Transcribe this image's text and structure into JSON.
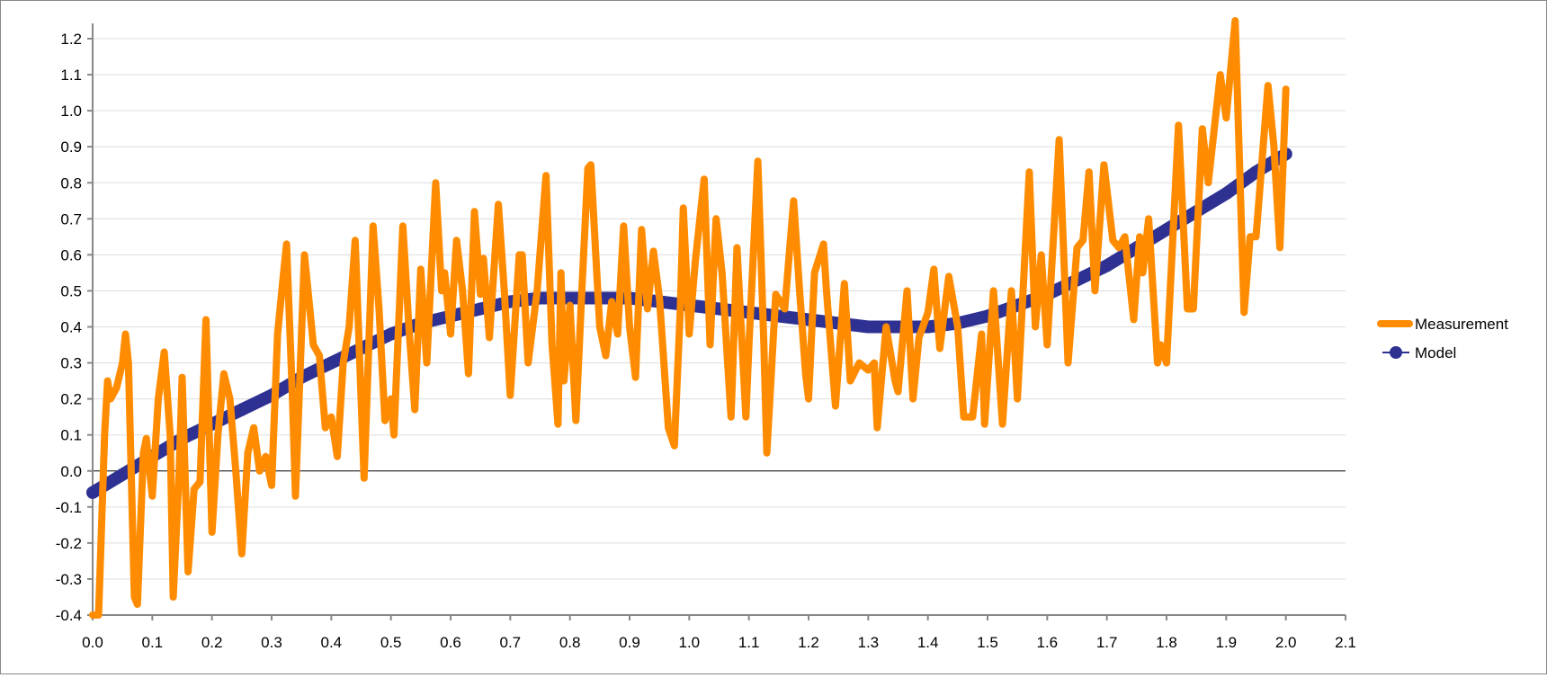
{
  "chart_data": {
    "type": "line",
    "title": "",
    "xlabel": "",
    "ylabel": "",
    "xlim": [
      0,
      2.1
    ],
    "ylim": [
      -0.4,
      1.2
    ],
    "xticks": [
      "0.0",
      "0.1",
      "0.2",
      "0.3",
      "0.4",
      "0.5",
      "0.6",
      "0.7",
      "0.8",
      "0.9",
      "1.0",
      "1.1",
      "1.2",
      "1.3",
      "1.4",
      "1.5",
      "1.6",
      "1.7",
      "1.8",
      "1.9",
      "2.0",
      "2.1"
    ],
    "yticks": [
      "1.2",
      "1.1",
      "1.0",
      "0.9",
      "0.8",
      "0.7",
      "0.6",
      "0.5",
      "0.4",
      "0.3",
      "0.2",
      "0.1",
      "0.0",
      "-0.1",
      "-0.2",
      "-0.3",
      "-0.4"
    ],
    "grid": true,
    "legend_position": "right",
    "colors": {
      "measurement": "#FF8C00",
      "model": "#2E3192"
    },
    "series": [
      {
        "name": "Measurement",
        "x": [
          0,
          0.01,
          0.02,
          0.025,
          0.03,
          0.04,
          0.05,
          0.055,
          0.06,
          0.07,
          0.075,
          0.085,
          0.09,
          0.1,
          0.11,
          0.12,
          0.13,
          0.135,
          0.145,
          0.15,
          0.16,
          0.17,
          0.18,
          0.19,
          0.2,
          0.21,
          0.22,
          0.23,
          0.24,
          0.25,
          0.26,
          0.27,
          0.28,
          0.29,
          0.3,
          0.31,
          0.32,
          0.325,
          0.335,
          0.34,
          0.355,
          0.37,
          0.38,
          0.39,
          0.4,
          0.41,
          0.42,
          0.43,
          0.44,
          0.455,
          0.47,
          0.48,
          0.49,
          0.5,
          0.505,
          0.52,
          0.53,
          0.54,
          0.55,
          0.56,
          0.575,
          0.585,
          0.59,
          0.6,
          0.61,
          0.62,
          0.63,
          0.64,
          0.65,
          0.655,
          0.665,
          0.68,
          0.69,
          0.7,
          0.715,
          0.72,
          0.73,
          0.745,
          0.76,
          0.77,
          0.78,
          0.785,
          0.79,
          0.8,
          0.81,
          0.82,
          0.83,
          0.835,
          0.85,
          0.86,
          0.87,
          0.88,
          0.89,
          0.9,
          0.91,
          0.92,
          0.93,
          0.94,
          0.95,
          0.965,
          0.975,
          0.985,
          0.99,
          1.0,
          1.01,
          1.025,
          1.035,
          1.045,
          1.055,
          1.07,
          1.08,
          1.095,
          1.1,
          1.115,
          1.125,
          1.13,
          1.145,
          1.16,
          1.175,
          1.185,
          1.195,
          1.2,
          1.21,
          1.225,
          1.23,
          1.245,
          1.26,
          1.27,
          1.285,
          1.3,
          1.31,
          1.315,
          1.33,
          1.345,
          1.35,
          1.365,
          1.375,
          1.385,
          1.4,
          1.41,
          1.42,
          1.435,
          1.45,
          1.46,
          1.475,
          1.49,
          1.495,
          1.51,
          1.525,
          1.54,
          1.55,
          1.57,
          1.58,
          1.59,
          1.6,
          1.62,
          1.635,
          1.65,
          1.66,
          1.67,
          1.68,
          1.695,
          1.71,
          1.72,
          1.73,
          1.745,
          1.755,
          1.76,
          1.77,
          1.785,
          1.79,
          1.8,
          1.82,
          1.835,
          1.845,
          1.86,
          1.87,
          1.89,
          1.9,
          1.915,
          1.93,
          1.94,
          1.95,
          1.97,
          1.98,
          1.99,
          2.0
        ],
        "y": [
          -0.4,
          -0.4,
          0.1,
          0.25,
          0.2,
          0.23,
          0.3,
          0.38,
          0.3,
          -0.35,
          -0.37,
          0.05,
          0.09,
          -0.07,
          0.2,
          0.33,
          0.1,
          -0.35,
          0.0,
          0.26,
          -0.28,
          -0.05,
          -0.03,
          0.42,
          -0.17,
          0.1,
          0.27,
          0.2,
          0.0,
          -0.23,
          0.05,
          0.12,
          0.0,
          0.04,
          -0.04,
          0.38,
          0.55,
          0.63,
          0.2,
          -0.07,
          0.6,
          0.35,
          0.32,
          0.12,
          0.15,
          0.04,
          0.3,
          0.4,
          0.64,
          -0.02,
          0.68,
          0.45,
          0.14,
          0.2,
          0.1,
          0.68,
          0.4,
          0.17,
          0.56,
          0.3,
          0.8,
          0.5,
          0.55,
          0.38,
          0.64,
          0.5,
          0.27,
          0.72,
          0.49,
          0.59,
          0.37,
          0.74,
          0.5,
          0.21,
          0.6,
          0.6,
          0.3,
          0.5,
          0.82,
          0.35,
          0.13,
          0.55,
          0.25,
          0.46,
          0.14,
          0.5,
          0.84,
          0.85,
          0.4,
          0.32,
          0.47,
          0.38,
          0.68,
          0.4,
          0.26,
          0.67,
          0.45,
          0.61,
          0.48,
          0.12,
          0.07,
          0.45,
          0.73,
          0.38,
          0.58,
          0.81,
          0.35,
          0.7,
          0.55,
          0.15,
          0.62,
          0.15,
          0.35,
          0.86,
          0.35,
          0.05,
          0.49,
          0.45,
          0.75,
          0.5,
          0.27,
          0.2,
          0.55,
          0.63,
          0.5,
          0.18,
          0.52,
          0.25,
          0.3,
          0.28,
          0.3,
          0.12,
          0.4,
          0.25,
          0.22,
          0.5,
          0.2,
          0.37,
          0.44,
          0.56,
          0.34,
          0.54,
          0.4,
          0.15,
          0.15,
          0.38,
          0.13,
          0.5,
          0.13,
          0.5,
          0.2,
          0.83,
          0.4,
          0.6,
          0.35,
          0.92,
          0.3,
          0.62,
          0.64,
          0.83,
          0.5,
          0.85,
          0.64,
          0.62,
          0.65,
          0.42,
          0.65,
          0.55,
          0.7,
          0.3,
          0.35,
          0.3,
          0.96,
          0.45,
          0.45,
          0.95,
          0.8,
          1.1,
          0.98,
          1.25,
          0.44,
          0.65,
          0.65,
          1.07,
          0.9,
          0.62,
          1.06
        ]
      },
      {
        "name": "Model",
        "x": [
          0,
          0.05,
          0.1,
          0.15,
          0.2,
          0.25,
          0.3,
          0.35,
          0.4,
          0.45,
          0.5,
          0.55,
          0.6,
          0.65,
          0.7,
          0.75,
          0.8,
          0.85,
          0.9,
          0.95,
          1.0,
          1.05,
          1.1,
          1.15,
          1.2,
          1.25,
          1.3,
          1.35,
          1.4,
          1.45,
          1.5,
          1.55,
          1.6,
          1.65,
          1.7,
          1.75,
          1.8,
          1.85,
          1.9,
          1.95,
          2.0
        ],
        "y": [
          -0.06,
          -0.01,
          0.04,
          0.09,
          0.13,
          0.17,
          0.21,
          0.26,
          0.3,
          0.34,
          0.38,
          0.41,
          0.43,
          0.45,
          0.47,
          0.48,
          0.48,
          0.48,
          0.48,
          0.47,
          0.46,
          0.45,
          0.44,
          0.43,
          0.42,
          0.41,
          0.4,
          0.4,
          0.4,
          0.41,
          0.43,
          0.46,
          0.49,
          0.53,
          0.57,
          0.62,
          0.67,
          0.72,
          0.77,
          0.83,
          0.88
        ]
      }
    ]
  }
}
